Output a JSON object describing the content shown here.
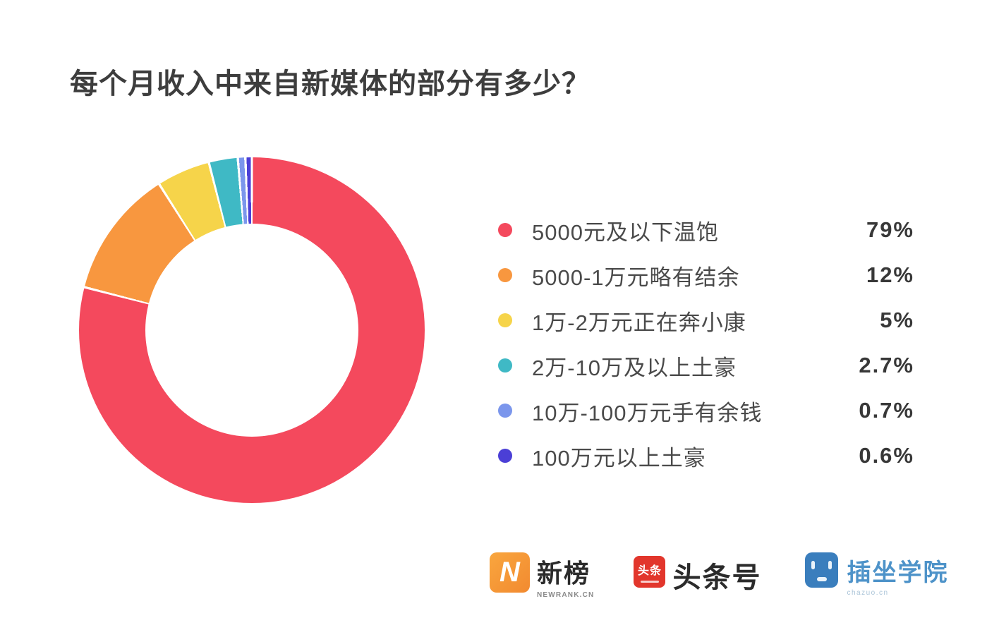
{
  "title": "每个月收入中来自新媒体的部分有多少？",
  "chart_data": {
    "type": "pie",
    "subtype": "donut",
    "title": "每个月收入中来自新媒体的部分有多少？",
    "legend_position": "right",
    "start_angle_deg": 0,
    "direction": "clockwise",
    "inner_radius_ratio": 0.61,
    "categories": [
      "5000元及以下温饱",
      "5000-1万元略有结余",
      "1万-2万元正在奔小康",
      "2万-10万及以上土豪",
      "10万-100万元手有余钱",
      "100万元以上土豪"
    ],
    "values": [
      79,
      12,
      5,
      2.7,
      0.7,
      0.6
    ],
    "value_labels": [
      "79%",
      "12%",
      "5%",
      "2.7%",
      "0.7%",
      "0.6%"
    ],
    "colors": [
      "#f4495d",
      "#f8973f",
      "#f6d44a",
      "#3fb9c5",
      "#7b96ec",
      "#4b3fd6"
    ],
    "segment_gap_color": "#ffffff"
  },
  "footer": {
    "logos": [
      {
        "id": "newrank",
        "icon_letter": "N",
        "name": "新榜",
        "sub": "NEWRANK.CN",
        "brand_color": "#f6983c"
      },
      {
        "id": "toutiao",
        "icon_text": "头条",
        "name": "头条号",
        "brand_color": "#e2362c"
      },
      {
        "id": "chazuo",
        "name": "插坐学院",
        "sub": "chazuo.cn",
        "brand_color": "#3a7ebd"
      }
    ]
  }
}
